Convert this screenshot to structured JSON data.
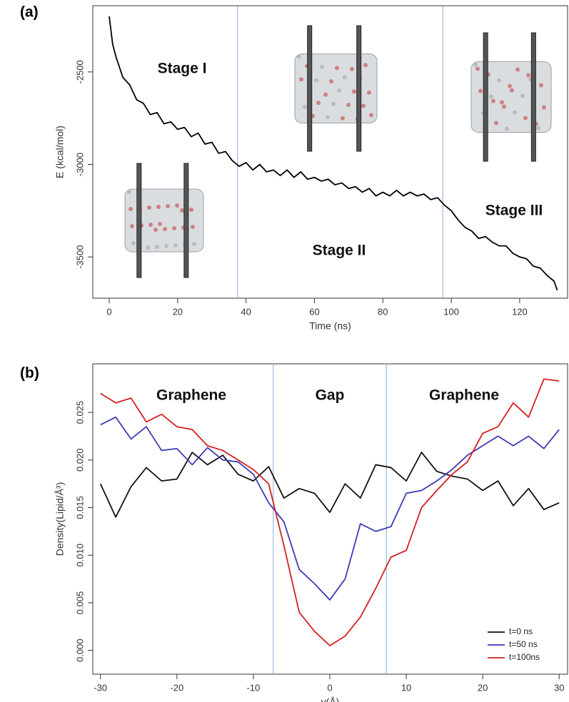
{
  "chart_data": [
    {
      "type": "line",
      "panel_label": "(a)",
      "x_label": "Time (ns)",
      "y_label": "E (kcal/mol)",
      "x": [
        0,
        1,
        2,
        4,
        6,
        8,
        10,
        12,
        14,
        16,
        18,
        20,
        22,
        24,
        26,
        28,
        30,
        32,
        34,
        36,
        38,
        40,
        42,
        44,
        46,
        48,
        50,
        52,
        54,
        56,
        58,
        60,
        62,
        64,
        66,
        68,
        70,
        72,
        74,
        76,
        78,
        80,
        82,
        84,
        86,
        88,
        90,
        92,
        94,
        96,
        98,
        100,
        102,
        104,
        106,
        108,
        110,
        112,
        114,
        116,
        118,
        120,
        122,
        124,
        126,
        128,
        130,
        131
      ],
      "values": [
        -2200,
        -2350,
        -2420,
        -2530,
        -2570,
        -2650,
        -2670,
        -2730,
        -2720,
        -2780,
        -2770,
        -2810,
        -2800,
        -2850,
        -2830,
        -2890,
        -2880,
        -2940,
        -2930,
        -2980,
        -3010,
        -2990,
        -3030,
        -3000,
        -3040,
        -3030,
        -3060,
        -3030,
        -3070,
        -3040,
        -3080,
        -3070,
        -3090,
        -3080,
        -3110,
        -3100,
        -3130,
        -3120,
        -3150,
        -3130,
        -3170,
        -3150,
        -3170,
        -3140,
        -3170,
        -3150,
        -3170,
        -3160,
        -3190,
        -3180,
        -3220,
        -3250,
        -3300,
        -3340,
        -3360,
        -3400,
        -3390,
        -3420,
        -3440,
        -3440,
        -3480,
        -3500,
        -3510,
        -3550,
        -3560,
        -3600,
        -3630,
        -3680
      ],
      "color": "#000000",
      "xlim": [
        -4.8,
        134
      ],
      "xticks": [
        0,
        20,
        40,
        60,
        80,
        100,
        120
      ],
      "ylim": [
        -3723,
        -2142
      ],
      "yticks": [
        -2500,
        -3000,
        -3500
      ],
      "vlines": [
        37.5,
        97.5
      ],
      "vline_color": "#9bb8e0",
      "annotations": [
        "Stage I",
        "Stage II",
        "Stage III"
      ]
    },
    {
      "type": "line",
      "panel_label": "(b)",
      "x_label": "y(Å)",
      "y_label": "Density(Lipid/Å³)",
      "x": [
        -30,
        -28,
        -26,
        -24,
        -22,
        -20,
        -18,
        -16,
        -14,
        -12,
        -10,
        -8,
        -6,
        -4,
        -2,
        0,
        2,
        4,
        6,
        8,
        10,
        12,
        14,
        16,
        18,
        20,
        22,
        24,
        26,
        28,
        30
      ],
      "series": [
        {
          "name": "t=0 ns",
          "color": "#111111",
          "values": [
            0.0175,
            0.014,
            0.0172,
            0.0192,
            0.0178,
            0.018,
            0.0208,
            0.0195,
            0.0205,
            0.0185,
            0.0178,
            0.0193,
            0.016,
            0.017,
            0.0165,
            0.0145,
            0.0175,
            0.016,
            0.0195,
            0.0192,
            0.0178,
            0.0208,
            0.0188,
            0.0183,
            0.018,
            0.0168,
            0.0178,
            0.0152,
            0.017,
            0.0148,
            0.0155
          ]
        },
        {
          "name": "t=50 ns",
          "color": "#3b3bb3",
          "values": [
            0.0237,
            0.0245,
            0.0222,
            0.0235,
            0.021,
            0.0212,
            0.0195,
            0.0213,
            0.02,
            0.0198,
            0.0185,
            0.0155,
            0.0135,
            0.0085,
            0.007,
            0.0053,
            0.0075,
            0.0133,
            0.0125,
            0.013,
            0.0165,
            0.0168,
            0.0178,
            0.019,
            0.0205,
            0.0215,
            0.0225,
            0.0215,
            0.0225,
            0.0212,
            0.0232
          ]
        },
        {
          "name": "t=100ns",
          "color": "#d42020",
          "values": [
            0.027,
            0.026,
            0.0265,
            0.024,
            0.0248,
            0.0235,
            0.0232,
            0.0215,
            0.021,
            0.02,
            0.019,
            0.0175,
            0.011,
            0.004,
            0.002,
            0.0005,
            0.0015,
            0.0035,
            0.0065,
            0.0098,
            0.0105,
            0.015,
            0.0168,
            0.0185,
            0.0198,
            0.0228,
            0.0235,
            0.026,
            0.0245,
            0.0285,
            0.0283
          ]
        }
      ],
      "xlim": [
        -31,
        31.1
      ],
      "xticks": [
        -30,
        -20,
        -10,
        0,
        10,
        20,
        30
      ],
      "ylim": [
        -0.0025,
        0.0301
      ],
      "yticks": [
        {
          "value": 0,
          "label": "0.000"
        },
        {
          "value": 0.005,
          "label": "0.005"
        },
        {
          "value": 0.01,
          "label": "0.010"
        },
        {
          "value": 0.015,
          "label": "0.015"
        },
        {
          "value": 0.02,
          "label": "0.020"
        },
        {
          "value": 0.025,
          "label": "0.025"
        }
      ],
      "vlines": [
        -7.4,
        7.4
      ],
      "vline_color": "#9bb8e0",
      "annotations": [
        "Graphene",
        "Gap",
        "Graphene"
      ],
      "legend": "lower right"
    }
  ]
}
